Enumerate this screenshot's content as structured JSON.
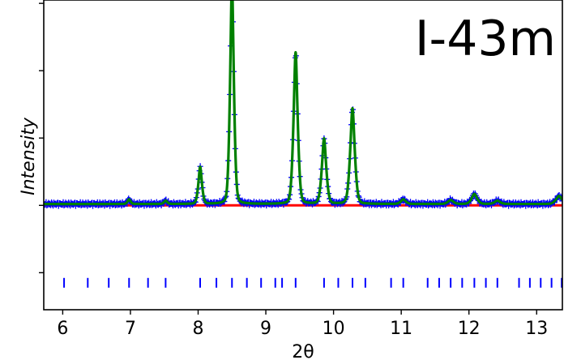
{
  "chart_data": {
    "type": "line",
    "xlabel": "2θ",
    "ylabel": "Intensity",
    "annotation": "I-43m",
    "xlim": [
      5.72,
      13.38
    ],
    "ylim": [
      -1.55,
      3.05
    ],
    "x_ticks": [
      6,
      7,
      8,
      9,
      10,
      11,
      12,
      13
    ],
    "y_ticks_unlabeled": [
      -1,
      0,
      1,
      2,
      3
    ],
    "grid": false,
    "peaks": [
      {
        "x": 6.98,
        "height": 0.07
      },
      {
        "x": 7.52,
        "height": 0.05
      },
      {
        "x": 8.03,
        "height": 0.55
      },
      {
        "x": 8.5,
        "height": 3.3
      },
      {
        "x": 9.44,
        "height": 2.25
      },
      {
        "x": 9.86,
        "height": 0.97
      },
      {
        "x": 10.28,
        "height": 1.42
      },
      {
        "x": 11.03,
        "height": 0.07
      },
      {
        "x": 11.73,
        "height": 0.06
      },
      {
        "x": 12.08,
        "height": 0.15
      },
      {
        "x": 12.42,
        "height": 0.05
      },
      {
        "x": 13.33,
        "height": 0.12
      }
    ],
    "background_level": 0.02,
    "difference_level": 0.0,
    "series": [
      {
        "role": "observed",
        "marker": "+",
        "color": "#0000ff"
      },
      {
        "role": "calculated",
        "color": "#008000"
      },
      {
        "role": "difference",
        "color": "#ff0000"
      }
    ],
    "reflection_ticks": {
      "y": -1.15,
      "color": "#0000ff",
      "x": [
        6.02,
        6.37,
        6.68,
        6.98,
        7.26,
        7.52,
        8.03,
        8.27,
        8.5,
        8.72,
        8.93,
        9.14,
        9.24,
        9.44,
        9.86,
        10.07,
        10.28,
        10.47,
        10.85,
        11.03,
        11.39,
        11.56,
        11.73,
        11.9,
        12.08,
        12.25,
        12.42,
        12.74,
        12.9,
        13.06,
        13.22,
        13.37
      ]
    }
  }
}
